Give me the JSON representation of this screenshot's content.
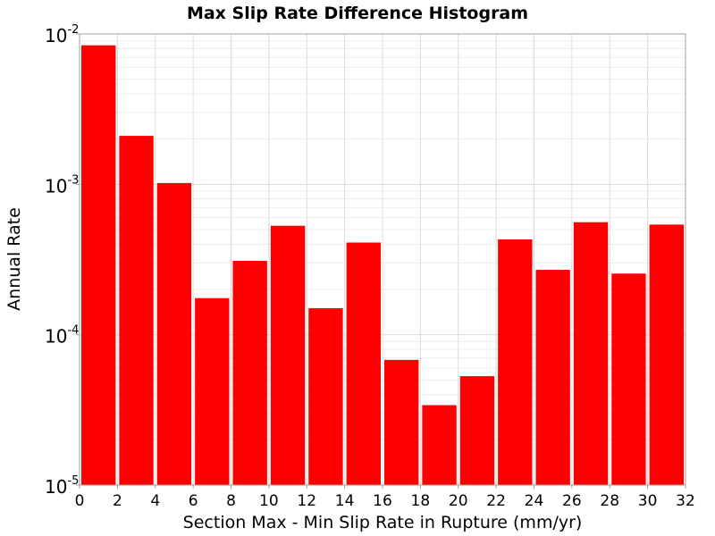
{
  "chart_data": {
    "type": "bar",
    "title": "Max Slip Rate Difference Histogram",
    "xlabel": "Section Max - Min Slip Rate in Rupture (mm/yr)",
    "ylabel": "Annual Rate",
    "yscale": "log",
    "ylim": [
      1e-05,
      0.01
    ],
    "xlim": [
      0,
      32
    ],
    "bin_width": 2,
    "x": [
      1,
      3,
      5,
      7,
      9,
      11,
      13,
      15,
      17,
      19,
      21,
      23,
      25,
      27,
      29,
      31
    ],
    "values": [
      0.0084,
      0.0021,
      0.00102,
      0.000175,
      0.00031,
      0.00053,
      0.00015,
      0.00041,
      6.8e-05,
      3.4e-05,
      5.3e-05,
      0.00043,
      0.00027,
      0.00056,
      0.000255,
      0.00054
    ],
    "bar_color": "#ff0000",
    "grid": true,
    "x_ticks": [
      0,
      2,
      4,
      6,
      8,
      10,
      12,
      14,
      16,
      18,
      20,
      22,
      24,
      26,
      28,
      30,
      32
    ],
    "y_ticks": [
      {
        "value": 0.01,
        "base": "10",
        "exp": "-2"
      },
      {
        "value": 0.001,
        "base": "10",
        "exp": "-3"
      },
      {
        "value": 0.0001,
        "base": "10",
        "exp": "-4"
      },
      {
        "value": 1e-05,
        "base": "10",
        "exp": "-5"
      }
    ]
  }
}
